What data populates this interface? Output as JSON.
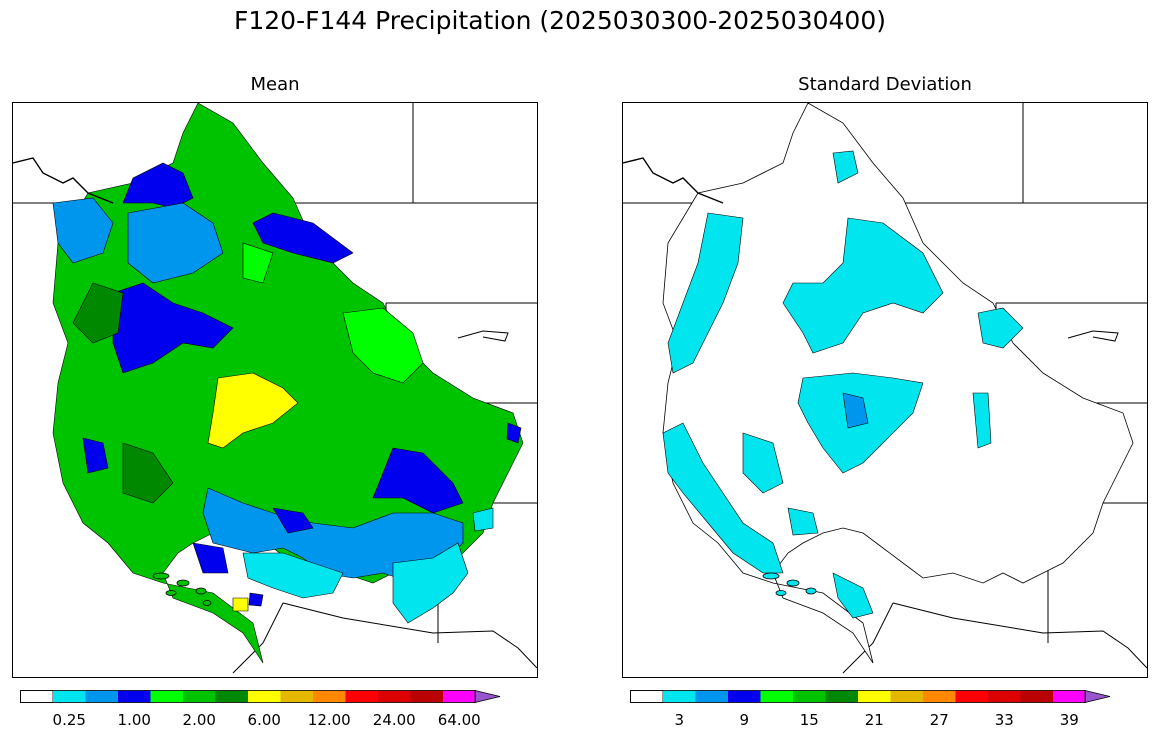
{
  "figure": {
    "title": "F120-F144 Precipitation (2025030300-2025030400)"
  },
  "panels": [
    {
      "id": "mean",
      "title": "Mean",
      "colorbar": {
        "colors": [
          "#ffffff",
          "#00e5ee",
          "#0096ee",
          "#0000ee",
          "#00ff00",
          "#00c300",
          "#008800",
          "#ffff00",
          "#e5b800",
          "#ff8800",
          "#ff0000",
          "#dd0000",
          "#bb0000",
          "#ff00ff",
          "#9955cc"
        ],
        "tick_labels": [
          "0.25",
          "1.00",
          "2.00",
          "6.00",
          "12.00",
          "24.00",
          "64.00"
        ],
        "extend": "max"
      }
    },
    {
      "id": "stddev",
      "title": "Standard Deviation",
      "colorbar": {
        "colors": [
          "#ffffff",
          "#00e5ee",
          "#0096ee",
          "#0000ee",
          "#00ff00",
          "#00c300",
          "#008800",
          "#ffff00",
          "#e5b800",
          "#ff8800",
          "#ff0000",
          "#dd0000",
          "#bb0000",
          "#ff00ff",
          "#9955cc"
        ],
        "tick_labels": [
          "3",
          "9",
          "15",
          "21",
          "27",
          "33",
          "39"
        ],
        "extend": "max"
      }
    }
  ]
}
